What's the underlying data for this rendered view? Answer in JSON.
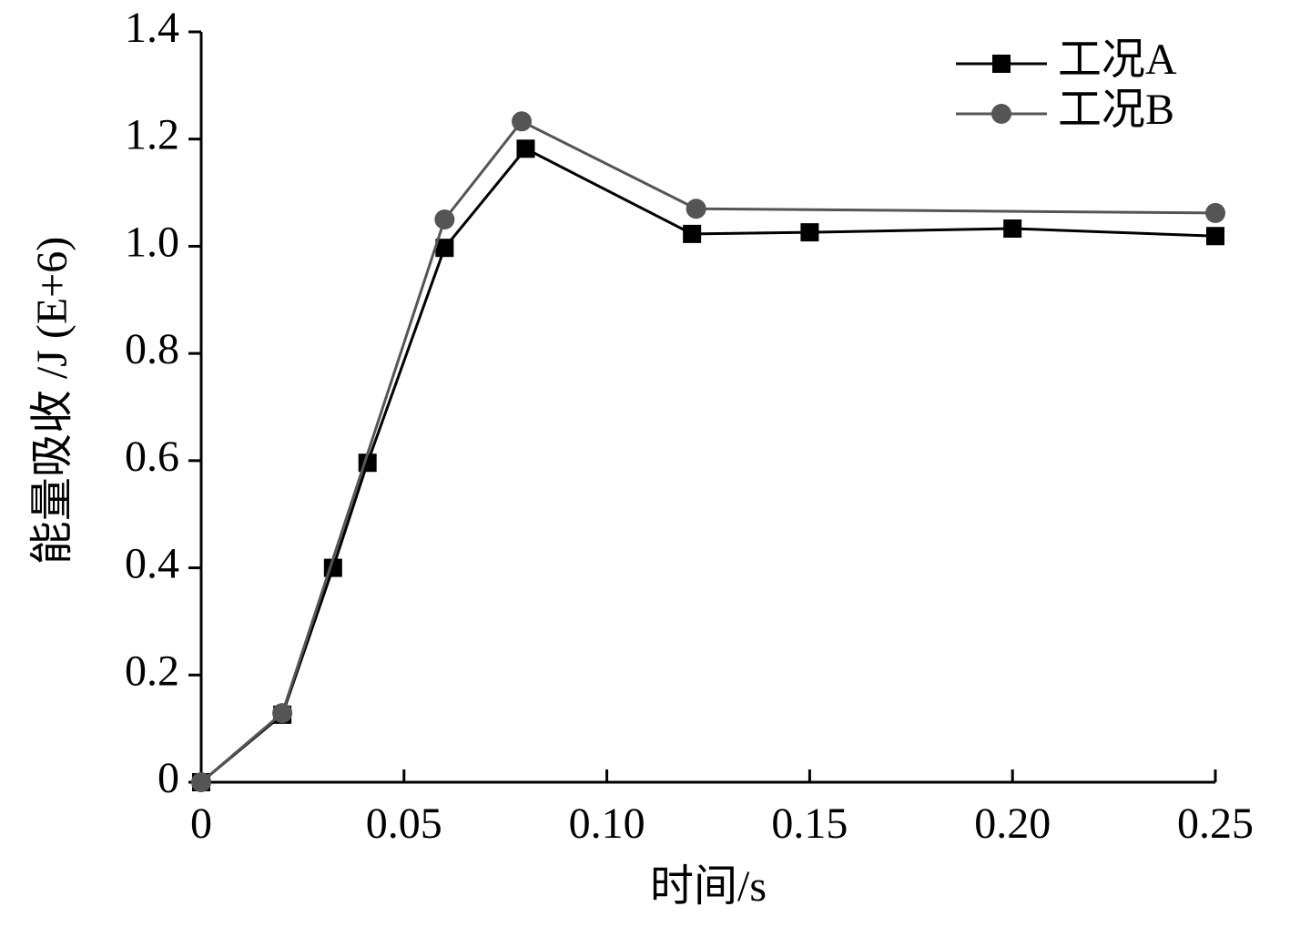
{
  "chart_data": {
    "type": "line",
    "xlabel": "时间/s",
    "ylabel": "能量吸收 /J (E+6)",
    "xlim": [
      0,
      0.25
    ],
    "ylim": [
      0,
      1.4
    ],
    "xticks": [
      0,
      0.05,
      {
        "value": 0.1,
        "label": "0.10"
      },
      0.15,
      {
        "value": 0.2,
        "label": "0.20"
      },
      0.25
    ],
    "yticks": [
      0,
      0.2,
      0.4,
      0.6,
      0.8,
      {
        "value": 1.0,
        "label": "1.0"
      },
      1.2,
      1.4
    ],
    "legend": "top-right",
    "series": [
      {
        "name": "工况A",
        "color": "#000000",
        "marker": "square",
        "x": [
          0,
          0.02,
          0.0325,
          0.041,
          0.06,
          0.08,
          0.121,
          0.15,
          0.2,
          0.25
        ],
        "values": [
          0,
          0.126,
          0.4,
          0.596,
          0.997,
          1.182,
          1.023,
          1.026,
          1.033,
          1.019
        ]
      },
      {
        "name": "工况B",
        "color": "#555555",
        "marker": "circle",
        "x": [
          0,
          0.02,
          0.06,
          0.079,
          0.122,
          0.25
        ],
        "values": [
          0,
          0.129,
          1.05,
          1.233,
          1.07,
          1.062
        ]
      }
    ]
  }
}
